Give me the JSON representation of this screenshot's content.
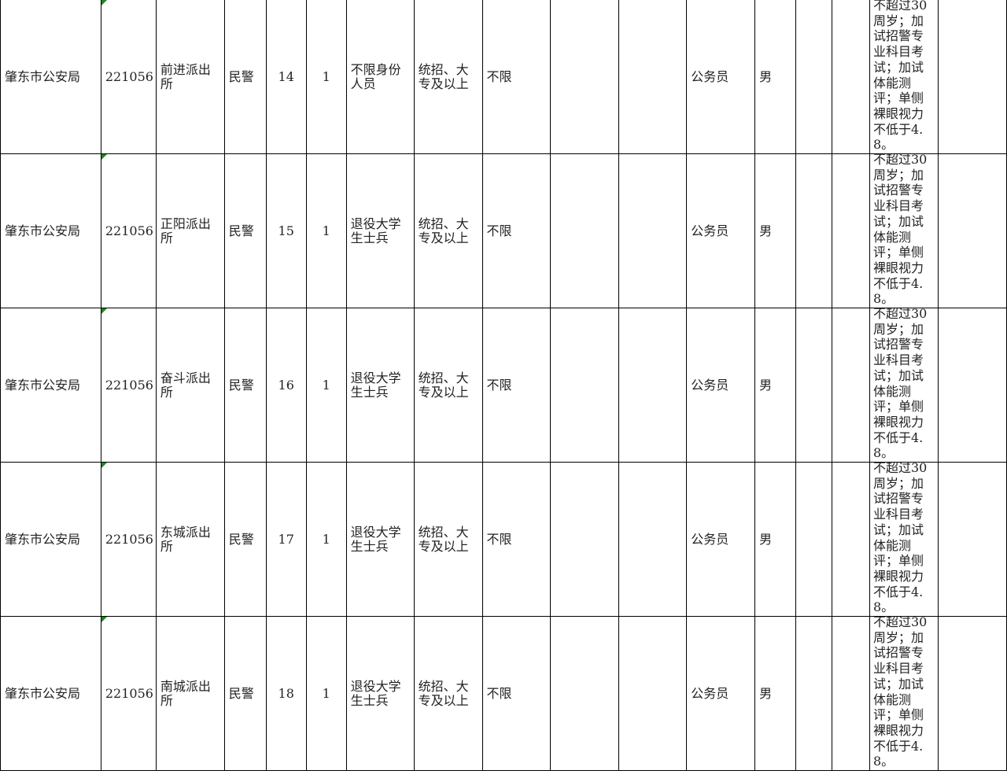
{
  "indicator_color": "#1a8a1a",
  "rows": [
    {
      "unit": "肇东市公安局",
      "code": "221056",
      "dept": "前进派出所",
      "post": "民警",
      "post_code": "14",
      "count": "1",
      "target": "不限身份人员",
      "education": "统招、大专及以上",
      "major": "不限",
      "nature": "公务员",
      "gender": "男",
      "note": "不超过30周岁；加试招警专业科目考试；加试体能测评；单侧裸眼视力不低于4.8。"
    },
    {
      "unit": "肇东市公安局",
      "code": "221056",
      "dept": "正阳派出所",
      "post": "民警",
      "post_code": "15",
      "count": "1",
      "target": "退役大学生士兵",
      "education": "统招、大专及以上",
      "major": "不限",
      "nature": "公务员",
      "gender": "男",
      "note": "不超过30周岁；加试招警专业科目考试；加试体能测评；单侧裸眼视力不低于4.8。"
    },
    {
      "unit": "肇东市公安局",
      "code": "221056",
      "dept": "奋斗派出所",
      "post": "民警",
      "post_code": "16",
      "count": "1",
      "target": "退役大学生士兵",
      "education": "统招、大专及以上",
      "major": "不限",
      "nature": "公务员",
      "gender": "男",
      "note": "不超过30周岁；加试招警专业科目考试；加试体能测评；单侧裸眼视力不低于4.8。"
    },
    {
      "unit": "肇东市公安局",
      "code": "221056",
      "dept": "东城派出所",
      "post": "民警",
      "post_code": "17",
      "count": "1",
      "target": "退役大学生士兵",
      "education": "统招、大专及以上",
      "major": "不限",
      "nature": "公务员",
      "gender": "男",
      "note": "不超过30周岁；加试招警专业科目考试；加试体能测评；单侧裸眼视力不低于4.8。"
    },
    {
      "unit": "肇东市公安局",
      "code": "221056",
      "dept": "南城派出所",
      "post": "民警",
      "post_code": "18",
      "count": "1",
      "target": "退役大学生士兵",
      "education": "统招、大专及以上",
      "major": "不限",
      "nature": "公务员",
      "gender": "男",
      "note": "不超过30周岁；加试招警专业科目考试；加试体能测评；单侧裸眼视力不低于4.8。"
    }
  ]
}
